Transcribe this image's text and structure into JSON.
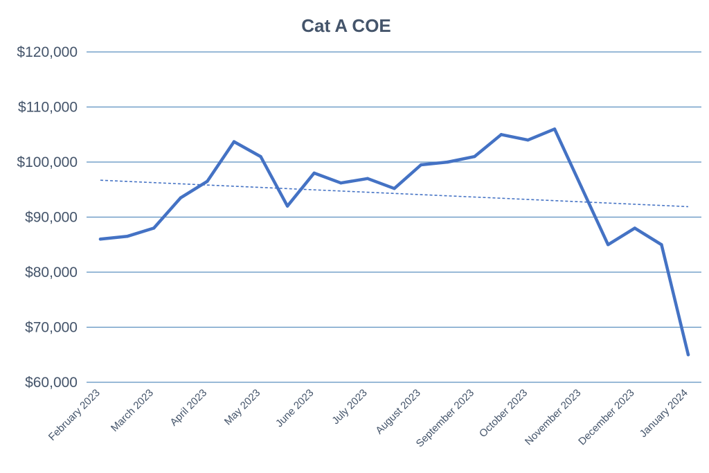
{
  "chart_data": {
    "type": "line",
    "title": "Cat A COE",
    "xlabel": "",
    "ylabel": "",
    "ylim": [
      60000,
      120000
    ],
    "yticks": [
      60000,
      70000,
      80000,
      90000,
      100000,
      110000,
      120000
    ],
    "ytick_labels": [
      "$60,000",
      "$70,000",
      "$80,000",
      "$90,000",
      "$100,000",
      "$110,000",
      "$120,000"
    ],
    "x_labels": [
      "February 2023",
      "March 2023",
      "April 2023",
      "May 2023",
      "June 2023",
      "July 2023",
      "August 2023",
      "September 2023",
      "October 2023",
      "November 2023",
      "December 2023",
      "January 2024"
    ],
    "grid": true,
    "colors": {
      "series": "#4472c4",
      "grid": "#5b8fbf",
      "text": "#44546a"
    },
    "series": [
      {
        "name": "Cat A COE",
        "values": [
          86000,
          86500,
          88000,
          93500,
          96500,
          103700,
          101000,
          92000,
          98000,
          96200,
          97000,
          95200,
          99500,
          100000,
          101000,
          105000,
          104000,
          106000,
          95500,
          85000,
          88000,
          85000,
          65000
        ]
      }
    ],
    "trendline": {
      "type": "linear",
      "style": "dashed",
      "start": 96700,
      "end": 91900
    }
  }
}
